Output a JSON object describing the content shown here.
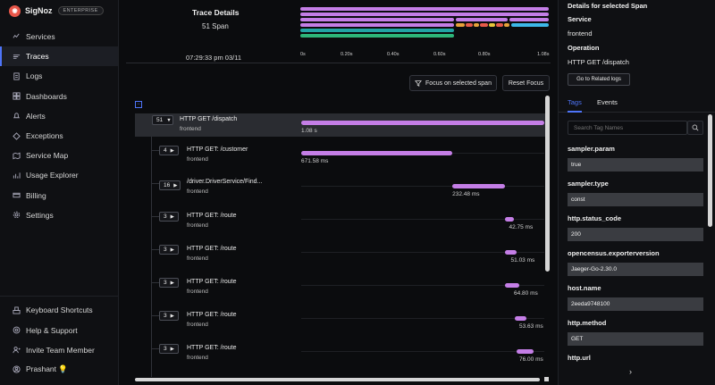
{
  "app": {
    "name": "SigNoz",
    "plan": "ENTERPRISE"
  },
  "nav": {
    "items": [
      {
        "label": "Services",
        "icon": "services-icon"
      },
      {
        "label": "Traces",
        "icon": "traces-icon"
      },
      {
        "label": "Logs",
        "icon": "logs-icon"
      },
      {
        "label": "Dashboards",
        "icon": "dashboards-icon"
      },
      {
        "label": "Alerts",
        "icon": "alerts-icon"
      },
      {
        "label": "Exceptions",
        "icon": "exceptions-icon"
      },
      {
        "label": "Service Map",
        "icon": "service-map-icon"
      },
      {
        "label": "Usage Explorer",
        "icon": "usage-explorer-icon"
      },
      {
        "label": "Billing",
        "icon": "billing-icon"
      },
      {
        "label": "Settings",
        "icon": "settings-icon"
      }
    ],
    "bottom": [
      {
        "label": "Keyboard Shortcuts",
        "icon": "keyboard-icon"
      },
      {
        "label": "Help & Support",
        "icon": "help-icon"
      },
      {
        "label": "Invite Team Member",
        "icon": "invite-icon"
      },
      {
        "label": "Prashant 💡",
        "icon": "user-icon"
      }
    ]
  },
  "trace": {
    "title": "Trace Details",
    "span_count": "51 Span",
    "timestamp": "07:29:33 pm 03/11",
    "ticks": [
      "0s",
      "0.20s",
      "0.40s",
      "0.60s",
      "0.80s",
      "1.08s"
    ]
  },
  "toolbar": {
    "focus_label": "Focus on selected span",
    "reset_label": "Reset Focus"
  },
  "spans": [
    {
      "count": "51",
      "expanded": true,
      "name": "HTTP GET /dispatch",
      "service": "frontend",
      "duration": "1.08 s",
      "start": 0.0,
      "end": 1.08
    },
    {
      "count": "4",
      "expanded": false,
      "name": "HTTP GET: /customer",
      "service": "frontend",
      "duration": "671.58 ms",
      "start": 0.0,
      "end": 0.6716
    },
    {
      "count": "16",
      "expanded": false,
      "name": "/driver.DriverService/Find...",
      "service": "frontend",
      "duration": "232.48 ms",
      "start": 0.6716,
      "end": 0.9041
    },
    {
      "count": "3",
      "expanded": false,
      "name": "HTTP GET: /route",
      "service": "frontend",
      "duration": "42.75 ms",
      "start": 0.9041,
      "end": 0.9469
    },
    {
      "count": "3",
      "expanded": false,
      "name": "HTTP GET: /route",
      "service": "frontend",
      "duration": "51.03 ms",
      "start": 0.9041,
      "end": 0.9551
    },
    {
      "count": "3",
      "expanded": false,
      "name": "HTTP GET: /route",
      "service": "frontend",
      "duration": "64.80 ms",
      "start": 0.9041,
      "end": 0.9689
    },
    {
      "count": "3",
      "expanded": false,
      "name": "HTTP GET: /route",
      "service": "frontend",
      "duration": "53.63 ms",
      "start": 0.9483,
      "end": 1.0019
    },
    {
      "count": "3",
      "expanded": false,
      "name": "HTTP GET: /route",
      "service": "frontend",
      "duration": "76.00 ms",
      "start": 0.9551,
      "end": 1.0311
    }
  ],
  "colors": {
    "span_bar": "#c47ee6",
    "accent": "#4e74f8",
    "mini_green": "#2db67a",
    "mini_blue": "#3db7e8",
    "mini_teal": "#22a5a5"
  },
  "panel": {
    "title": "Details for selected Span",
    "service_label": "Service",
    "service_value": "frontend",
    "operation_label": "Operation",
    "operation_value": "HTTP GET /dispatch",
    "related_logs": "Go to Related logs",
    "tab_tags": "Tags",
    "tab_events": "Events",
    "search_placeholder": "Search Tag Names",
    "tags": [
      {
        "key": "sampler.param",
        "value": "true"
      },
      {
        "key": "sampler.type",
        "value": "const"
      },
      {
        "key": "http.status_code",
        "value": "200"
      },
      {
        "key": "opencensus.exporterversion",
        "value": "Jaeger-Go-2.30.0"
      },
      {
        "key": "host.name",
        "value": "2eeda9748100"
      },
      {
        "key": "http.method",
        "value": "GET"
      },
      {
        "key": "http.url",
        "value": ""
      }
    ]
  }
}
